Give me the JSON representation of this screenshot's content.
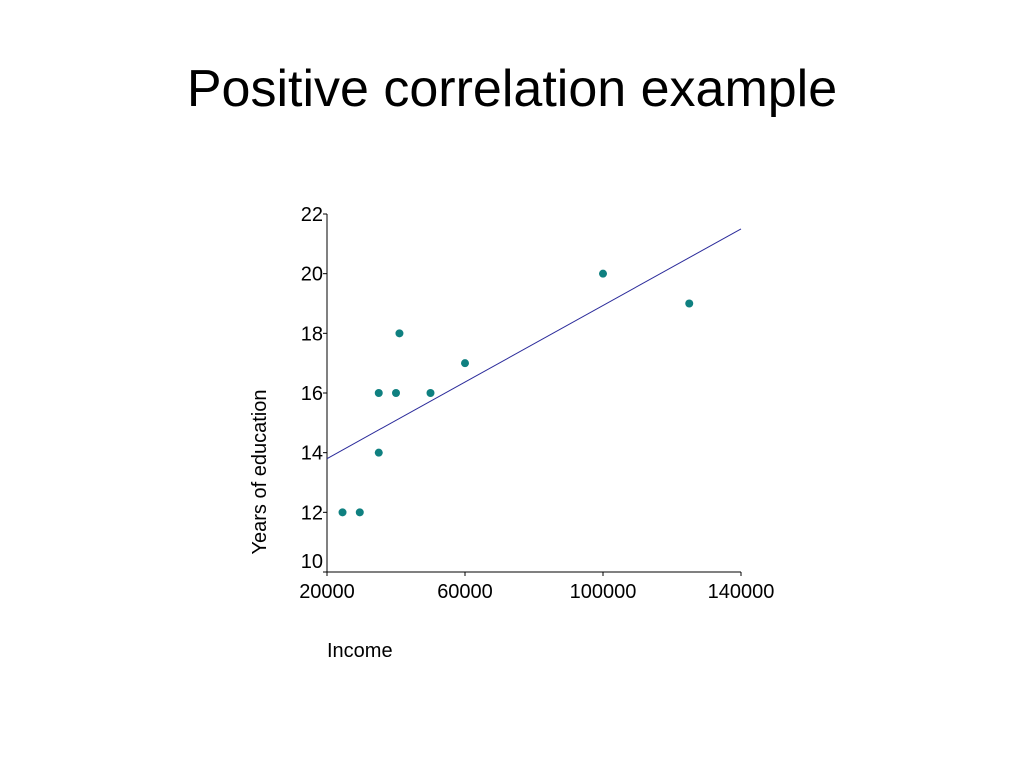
{
  "slide": {
    "title": "Positive correlation example"
  },
  "chart_data": {
    "type": "scatter",
    "title": "",
    "xlabel": "Income",
    "ylabel": "Years of education",
    "xlim": [
      20000,
      140000
    ],
    "ylim": [
      10,
      22
    ],
    "xticks": [
      20000,
      60000,
      100000,
      140000
    ],
    "yticks": [
      10,
      12,
      14,
      16,
      18,
      20,
      22
    ],
    "grid": false,
    "points": [
      {
        "x": 24500,
        "y": 12
      },
      {
        "x": 29500,
        "y": 12
      },
      {
        "x": 35000,
        "y": 14
      },
      {
        "x": 35000,
        "y": 16
      },
      {
        "x": 40000,
        "y": 16
      },
      {
        "x": 41000,
        "y": 18
      },
      {
        "x": 50000,
        "y": 16
      },
      {
        "x": 60000,
        "y": 17
      },
      {
        "x": 100000,
        "y": 20
      },
      {
        "x": 125000,
        "y": 19
      }
    ],
    "trendline": {
      "type": "linear",
      "from": {
        "x": 20000,
        "y": 13.8
      },
      "to": {
        "x": 140000,
        "y": 21.5
      }
    },
    "colors": {
      "points": "#0f8080",
      "trendline": "#2a2a9a",
      "axes": "#000000"
    }
  }
}
